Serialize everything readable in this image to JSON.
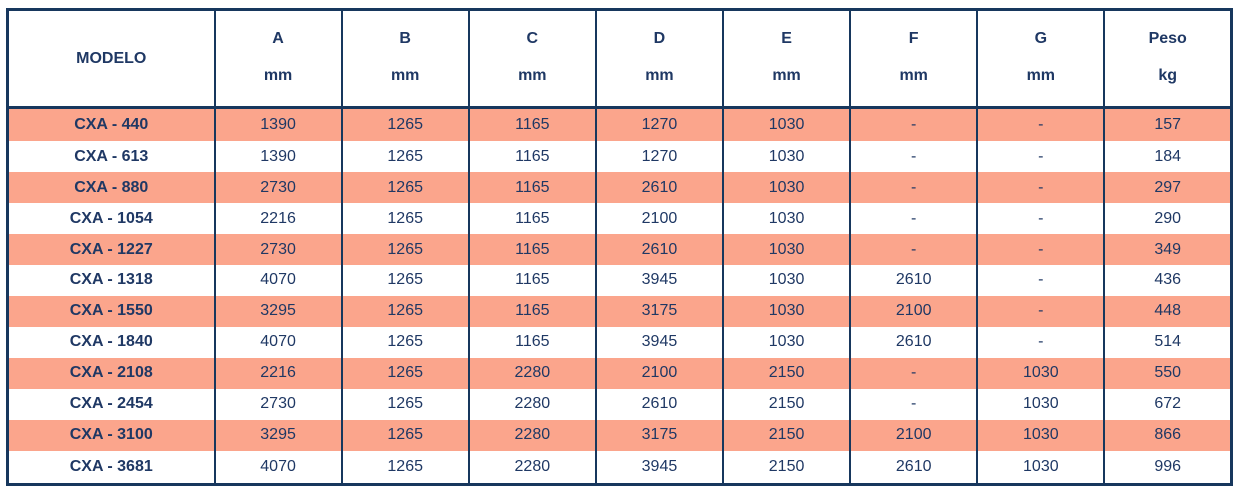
{
  "colors": {
    "border": "#17375d",
    "text": "#1f3864",
    "row_highlight": "#fba58c",
    "row_plain": "#ffffff"
  },
  "table": {
    "model_header": "MODELO",
    "columns": [
      {
        "label": "A",
        "unit": "mm"
      },
      {
        "label": "B",
        "unit": "mm"
      },
      {
        "label": "C",
        "unit": "mm"
      },
      {
        "label": "D",
        "unit": "mm"
      },
      {
        "label": "E",
        "unit": "mm"
      },
      {
        "label": "F",
        "unit": "mm"
      },
      {
        "label": "G",
        "unit": "mm"
      },
      {
        "label": "Peso",
        "unit": "kg"
      }
    ],
    "rows": [
      {
        "model": "CXA - 440",
        "highlight": true,
        "values": [
          "1390",
          "1265",
          "1165",
          "1270",
          "1030",
          "-",
          "-",
          "157"
        ]
      },
      {
        "model": "CXA - 613",
        "highlight": false,
        "values": [
          "1390",
          "1265",
          "1165",
          "1270",
          "1030",
          "-",
          "-",
          "184"
        ]
      },
      {
        "model": "CXA - 880",
        "highlight": true,
        "values": [
          "2730",
          "1265",
          "1165",
          "2610",
          "1030",
          "-",
          "-",
          "297"
        ]
      },
      {
        "model": "CXA - 1054",
        "highlight": false,
        "values": [
          "2216",
          "1265",
          "1165",
          "2100",
          "1030",
          "-",
          "-",
          "290"
        ]
      },
      {
        "model": "CXA - 1227",
        "highlight": true,
        "values": [
          "2730",
          "1265",
          "1165",
          "2610",
          "1030",
          "-",
          "-",
          "349"
        ]
      },
      {
        "model": "CXA - 1318",
        "highlight": false,
        "values": [
          "4070",
          "1265",
          "1165",
          "3945",
          "1030",
          "2610",
          "-",
          "436"
        ]
      },
      {
        "model": "CXA - 1550",
        "highlight": true,
        "values": [
          "3295",
          "1265",
          "1165",
          "3175",
          "1030",
          "2100",
          "-",
          "448"
        ]
      },
      {
        "model": "CXA - 1840",
        "highlight": false,
        "values": [
          "4070",
          "1265",
          "1165",
          "3945",
          "1030",
          "2610",
          "-",
          "514"
        ]
      },
      {
        "model": "CXA - 2108",
        "highlight": true,
        "values": [
          "2216",
          "1265",
          "2280",
          "2100",
          "2150",
          "-",
          "1030",
          "550"
        ]
      },
      {
        "model": "CXA - 2454",
        "highlight": false,
        "values": [
          "2730",
          "1265",
          "2280",
          "2610",
          "2150",
          "-",
          "1030",
          "672"
        ]
      },
      {
        "model": "CXA - 3100",
        "highlight": true,
        "values": [
          "3295",
          "1265",
          "2280",
          "3175",
          "2150",
          "2100",
          "1030",
          "866"
        ]
      },
      {
        "model": "CXA - 3681",
        "highlight": false,
        "values": [
          "4070",
          "1265",
          "2280",
          "3945",
          "2150",
          "2610",
          "1030",
          "996"
        ]
      }
    ]
  }
}
